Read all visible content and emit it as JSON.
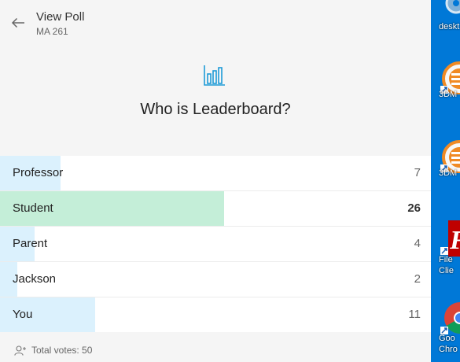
{
  "header": {
    "title": "View Poll",
    "subtitle": "MA 261"
  },
  "poll": {
    "question": "Who is Leaderboard?",
    "total_votes_label": "Total votes: 50",
    "options": [
      {
        "label": "Professor",
        "votes": 7,
        "votes_text": "7",
        "winner": false
      },
      {
        "label": "Student",
        "votes": 26,
        "votes_text": "26",
        "winner": true
      },
      {
        "label": "Parent",
        "votes": 4,
        "votes_text": "4",
        "winner": false
      },
      {
        "label": "Jackson",
        "votes": 2,
        "votes_text": "2",
        "winner": false
      },
      {
        "label": "You",
        "votes": 11,
        "votes_text": "11",
        "winner": false
      }
    ]
  },
  "desktop": {
    "icons": [
      {
        "label": "deskt",
        "icon": "gear-icon"
      },
      {
        "label": "3DM",
        "icon": "3dmark-icon"
      },
      {
        "label": "3DM",
        "icon": "3dmark-icon"
      },
      {
        "label": "File",
        "label2": "Clie",
        "icon": "filezilla-icon"
      },
      {
        "label": "Goo",
        "label2": "Chro",
        "icon": "chrome-icon"
      }
    ]
  },
  "colors": {
    "accent": "#1e9bd7",
    "bar_default": "#dbf1fd",
    "bar_winner": "#c4eed8",
    "desktop_bg": "#0078d7"
  }
}
